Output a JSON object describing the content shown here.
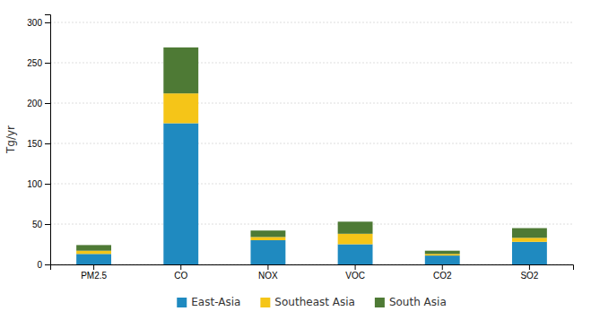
{
  "chart_data": {
    "type": "bar",
    "stacked": true,
    "categories": [
      "PM2.5",
      "CO",
      "NOX",
      "VOC",
      "CO2",
      "SO2"
    ],
    "series": [
      {
        "name": "East-Asia",
        "color": "#1f8ac0",
        "values": [
          13,
          175,
          30,
          25,
          11,
          28
        ]
      },
      {
        "name": "Southeast Asia",
        "color": "#f5c518",
        "values": [
          4,
          37,
          4,
          13,
          2,
          5
        ]
      },
      {
        "name": "South Asia",
        "color": "#4e7a35",
        "values": [
          7,
          57,
          8,
          15,
          4,
          12
        ]
      }
    ],
    "ylabel": "Tg/yr",
    "ylim": [
      0,
      310
    ],
    "yticks": [
      0,
      50,
      100,
      150,
      200,
      250,
      300
    ],
    "grid": true,
    "legend": "bottom"
  }
}
